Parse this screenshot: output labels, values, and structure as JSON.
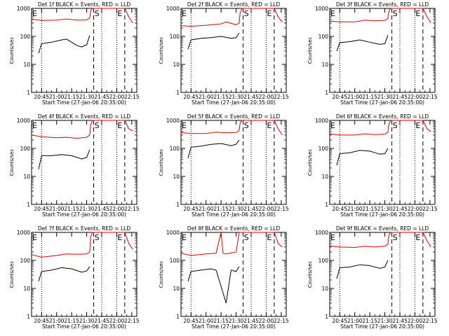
{
  "figure": {
    "xlabel": "Start Time (27-Jan-06 20:35:00)",
    "ylabel": "Counts/sec",
    "x_ticks": [
      "20:45",
      "21:00",
      "21:15",
      "21:30",
      "21:45",
      "22:00",
      "22:15"
    ],
    "y_ticks": [
      "1",
      "10",
      "100",
      "1000"
    ],
    "colors": {
      "events": "#000000",
      "lld": "#e00000",
      "axes": "#000000"
    },
    "marker_labels": {
      "e": "E",
      "s": "S"
    }
  },
  "chart_data": [
    {
      "type": "line",
      "title": "Det 1f BLACK = Events, RED = LLD",
      "xlabel": "Start Time (27-Jan-06 20:35:00)",
      "ylabel": "Counts/sec",
      "yscale": "log",
      "ylim": [
        1,
        1000
      ],
      "xlim": [
        "20:35",
        "22:20"
      ],
      "markers": {
        "dotted": [
          "20:45",
          "21:45",
          "22:00"
        ],
        "dashed": [
          "21:37",
          "22:08"
        ],
        "labels": [
          {
            "text": "E",
            "x": "20:35"
          },
          {
            "text": "S",
            "x": "21:37"
          },
          {
            "text": "E",
            "x": "22:00"
          }
        ]
      },
      "series": [
        {
          "name": "Events",
          "x": [
            "20:42",
            "20:45",
            "20:55",
            "21:05",
            "21:10",
            "21:20",
            "21:25",
            "21:30",
            "21:33"
          ],
          "y": [
            25,
            55,
            62,
            75,
            80,
            48,
            42,
            50,
            110
          ]
        },
        {
          "name": "LLD",
          "x": [
            "20:35",
            "20:45",
            "21:00",
            "21:10",
            "21:20",
            "21:30",
            "21:33",
            "21:34",
            "21:36",
            "22:08",
            "22:12",
            "22:16"
          ],
          "y": [
            420,
            370,
            380,
            420,
            380,
            390,
            450,
            800,
            1200,
            1000,
            500,
            300
          ]
        }
      ]
    },
    {
      "type": "line",
      "title": "Det 2f BLACK = Events, RED = LLD",
      "xlabel": "Start Time (27-Jan-06 20:35:00)",
      "ylabel": "Counts/sec",
      "yscale": "log",
      "ylim": [
        1,
        1000
      ],
      "xlim": [
        "20:35",
        "22:20"
      ],
      "markers": {
        "dotted": [
          "20:45",
          "21:45",
          "22:00"
        ],
        "dashed": [
          "21:37",
          "22:08"
        ],
        "labels": [
          {
            "text": "E",
            "x": "20:35"
          },
          {
            "text": "S",
            "x": "21:37"
          },
          {
            "text": "E",
            "x": "22:00"
          }
        ]
      },
      "series": [
        {
          "name": "Events",
          "x": [
            "20:42",
            "20:45",
            "20:55",
            "21:05",
            "21:15",
            "21:25",
            "21:30",
            "21:33"
          ],
          "y": [
            35,
            75,
            85,
            90,
            100,
            85,
            90,
            130
          ]
        },
        {
          "name": "LLD",
          "x": [
            "20:35",
            "20:45",
            "21:00",
            "21:10",
            "21:15",
            "21:20",
            "21:30",
            "21:33",
            "21:34",
            "21:36",
            "22:08",
            "22:12",
            "22:16"
          ],
          "y": [
            240,
            230,
            250,
            270,
            280,
            330,
            260,
            300,
            700,
            1200,
            1000,
            500,
            320
          ]
        }
      ]
    },
    {
      "type": "line",
      "title": "Det 3f BLACK = Events, RED = LLD",
      "xlabel": "Start Time (27-Jan-06 20:35:00)",
      "ylabel": "Counts/sec",
      "yscale": "log",
      "ylim": [
        1,
        1000
      ],
      "xlim": [
        "20:35",
        "22:20"
      ],
      "markers": {
        "dotted": [
          "20:45",
          "21:45",
          "22:00"
        ],
        "dashed": [
          "21:37",
          "22:08"
        ],
        "labels": [
          {
            "text": "E",
            "x": "20:35"
          },
          {
            "text": "S",
            "x": "21:37"
          },
          {
            "text": "E",
            "x": "22:00"
          }
        ]
      },
      "series": [
        {
          "name": "Events",
          "x": [
            "20:42",
            "20:45",
            "20:55",
            "21:05",
            "21:15",
            "21:25",
            "21:30",
            "21:33"
          ],
          "y": [
            30,
            60,
            65,
            75,
            62,
            52,
            55,
            110
          ]
        },
        {
          "name": "LLD",
          "x": [
            "20:35",
            "20:45",
            "21:00",
            "21:10",
            "21:20",
            "21:30",
            "21:33",
            "21:34",
            "21:36",
            "22:08",
            "22:12",
            "22:16"
          ],
          "y": [
            350,
            330,
            330,
            380,
            360,
            370,
            430,
            800,
            1200,
            1000,
            500,
            300
          ]
        }
      ]
    },
    {
      "type": "line",
      "title": "Det 4f BLACK = Events, RED = LLD",
      "xlabel": "Start Time (27-Jan-06 20:35:00)",
      "ylabel": "Counts/sec",
      "yscale": "log",
      "ylim": [
        1,
        1000
      ],
      "xlim": [
        "20:35",
        "22:20"
      ],
      "markers": {
        "dotted": [
          "20:45",
          "21:45",
          "22:00"
        ],
        "dashed": [
          "21:37",
          "22:08"
        ],
        "labels": [
          {
            "text": "E",
            "x": "20:35"
          },
          {
            "text": "S",
            "x": "21:37"
          },
          {
            "text": "E",
            "x": "22:00"
          }
        ]
      },
      "series": [
        {
          "name": "Events",
          "x": [
            "20:42",
            "20:45",
            "20:55",
            "21:05",
            "21:15",
            "21:25",
            "21:30",
            "21:33"
          ],
          "y": [
            18,
            55,
            55,
            60,
            55,
            42,
            48,
            90
          ]
        },
        {
          "name": "LLD",
          "x": [
            "20:35",
            "20:45",
            "21:00",
            "21:10",
            "21:20",
            "21:30",
            "21:33",
            "21:34",
            "21:36",
            "22:08",
            "22:12",
            "22:16"
          ],
          "y": [
            300,
            260,
            240,
            250,
            230,
            250,
            300,
            700,
            1200,
            1000,
            500,
            420
          ]
        }
      ]
    },
    {
      "type": "line",
      "title": "Det 5f BLACK = Events, RED = LLD",
      "xlabel": "Start Time (27-Jan-06 20:35:00)",
      "ylabel": "Counts/sec",
      "yscale": "log",
      "ylim": [
        1,
        1000
      ],
      "xlim": [
        "20:35",
        "22:20"
      ],
      "markers": {
        "dotted": [
          "20:45",
          "21:45",
          "22:00"
        ],
        "dashed": [
          "21:37",
          "22:08"
        ],
        "labels": [
          {
            "text": "E",
            "x": "20:35"
          },
          {
            "text": "S",
            "x": "21:37"
          },
          {
            "text": "E",
            "x": "22:00"
          }
        ]
      },
      "series": [
        {
          "name": "Events",
          "x": [
            "20:42",
            "20:45",
            "20:55",
            "21:05",
            "21:15",
            "21:25",
            "21:30",
            "21:33"
          ],
          "y": [
            45,
            110,
            120,
            140,
            150,
            125,
            140,
            200
          ]
        },
        {
          "name": "LLD",
          "x": [
            "20:35",
            "20:45",
            "21:00",
            "21:10",
            "21:20",
            "21:30",
            "21:33",
            "21:34",
            "21:36",
            "22:08",
            "22:12",
            "22:16"
          ],
          "y": [
            370,
            340,
            340,
            380,
            360,
            370,
            430,
            800,
            1200,
            1000,
            500,
            300
          ]
        }
      ]
    },
    {
      "type": "line",
      "title": "Det 6f BLACK = Events, RED = LLD",
      "xlabel": "Start Time (27-Jan-06 20:35:00)",
      "ylabel": "Counts/sec",
      "yscale": "log",
      "ylim": [
        1,
        1000
      ],
      "xlim": [
        "20:35",
        "22:20"
      ],
      "markers": {
        "dotted": [
          "20:45",
          "21:45",
          "22:00"
        ],
        "dashed": [
          "21:37",
          "22:08"
        ],
        "labels": [
          {
            "text": "E",
            "x": "20:35"
          },
          {
            "text": "S",
            "x": "21:37"
          },
          {
            "text": "E",
            "x": "22:00"
          }
        ]
      },
      "series": [
        {
          "name": "Events",
          "x": [
            "20:42",
            "20:45",
            "20:55",
            "21:05",
            "21:15",
            "21:25",
            "21:30",
            "21:33"
          ],
          "y": [
            25,
            65,
            70,
            85,
            80,
            62,
            65,
            100
          ]
        },
        {
          "name": "LLD",
          "x": [
            "20:35",
            "20:45",
            "21:00",
            "21:10",
            "21:20",
            "21:30",
            "21:33",
            "21:34",
            "21:36",
            "22:08",
            "22:12",
            "22:16"
          ],
          "y": [
            330,
            300,
            300,
            330,
            310,
            320,
            380,
            750,
            1200,
            1000,
            500,
            400
          ]
        }
      ]
    },
    {
      "type": "line",
      "title": "Det 7f BLACK = Events, RED = LLD",
      "xlabel": "Start Time (27-Jan-06 20:35:00)",
      "ylabel": "Counts/sec",
      "yscale": "log",
      "ylim": [
        1,
        1000
      ],
      "xlim": [
        "20:35",
        "22:20"
      ],
      "markers": {
        "dotted": [
          "20:45",
          "21:45",
          "22:00"
        ],
        "dashed": [
          "21:37",
          "22:08"
        ],
        "labels": [
          {
            "text": "E",
            "x": "20:35"
          },
          {
            "text": "S",
            "x": "21:37"
          },
          {
            "text": "E",
            "x": "22:00"
          }
        ]
      },
      "series": [
        {
          "name": "Events",
          "x": [
            "20:42",
            "20:45",
            "20:55",
            "21:05",
            "21:15",
            "21:25",
            "21:30",
            "21:33"
          ],
          "y": [
            18,
            40,
            45,
            55,
            50,
            38,
            42,
            60
          ]
        },
        {
          "name": "LLD",
          "x": [
            "20:35",
            "20:45",
            "21:00",
            "21:10",
            "21:20",
            "21:30",
            "21:33",
            "21:34",
            "21:36",
            "22:08",
            "22:12",
            "22:16"
          ],
          "y": [
            160,
            130,
            150,
            170,
            165,
            170,
            200,
            700,
            1200,
            1000,
            400,
            250
          ]
        }
      ]
    },
    {
      "type": "line",
      "title": "Det 8f BLACK = Events, RED = LLD",
      "xlabel": "Start Time (27-Jan-06 20:35:00)",
      "ylabel": "Counts/sec",
      "yscale": "log",
      "ylim": [
        1,
        1000
      ],
      "xlim": [
        "20:35",
        "22:20"
      ],
      "markers": {
        "dotted": [
          "20:45",
          "21:45",
          "22:00"
        ],
        "dashed": [
          "21:37",
          "22:08"
        ],
        "labels": [
          {
            "text": "E",
            "x": "20:35"
          },
          {
            "text": "S",
            "x": "21:37"
          },
          {
            "text": "E",
            "x": "22:00"
          }
        ]
      },
      "series": [
        {
          "name": "Events",
          "x": [
            "20:42",
            "20:45",
            "20:55",
            "21:05",
            "21:10",
            "21:20",
            "21:25",
            "21:30",
            "21:33"
          ],
          "y": [
            18,
            40,
            45,
            50,
            45,
            3,
            45,
            40,
            60
          ]
        },
        {
          "name": "LLD",
          "x": [
            "20:35",
            "20:45",
            "21:00",
            "21:10",
            "21:15",
            "21:17",
            "21:20",
            "21:30",
            "21:33",
            "21:34",
            "21:36",
            "22:08",
            "22:12",
            "22:16"
          ],
          "y": [
            180,
            150,
            170,
            180,
            1200,
            180,
            170,
            200,
            1200,
            1200,
            1200,
            1000,
            400,
            300
          ]
        }
      ]
    },
    {
      "type": "line",
      "title": "Det 9f BLACK = Events, RED = LLD",
      "xlabel": "Start Time (27-Jan-06 20:35:00)",
      "ylabel": "Counts/sec",
      "yscale": "log",
      "ylim": [
        1,
        1000
      ],
      "xlim": [
        "20:35",
        "22:20"
      ],
      "markers": {
        "dotted": [
          "20:45",
          "21:45",
          "22:00"
        ],
        "dashed": [
          "21:37",
          "22:08"
        ],
        "labels": [
          {
            "text": "E",
            "x": "20:35"
          },
          {
            "text": "S",
            "x": "21:37"
          },
          {
            "text": "E",
            "x": "22:00"
          }
        ]
      },
      "series": [
        {
          "name": "Events",
          "x": [
            "20:42",
            "20:45",
            "20:55",
            "21:05",
            "21:15",
            "21:25",
            "21:30",
            "21:33"
          ],
          "y": [
            22,
            55,
            58,
            70,
            65,
            52,
            58,
            100
          ]
        },
        {
          "name": "LLD",
          "x": [
            "20:35",
            "20:45",
            "21:00",
            "21:10",
            "21:20",
            "21:30",
            "21:33",
            "21:34",
            "21:36",
            "22:08",
            "22:12",
            "22:16"
          ],
          "y": [
            330,
            300,
            290,
            320,
            300,
            320,
            380,
            800,
            1200,
            1000,
            500,
            300
          ]
        }
      ]
    }
  ]
}
